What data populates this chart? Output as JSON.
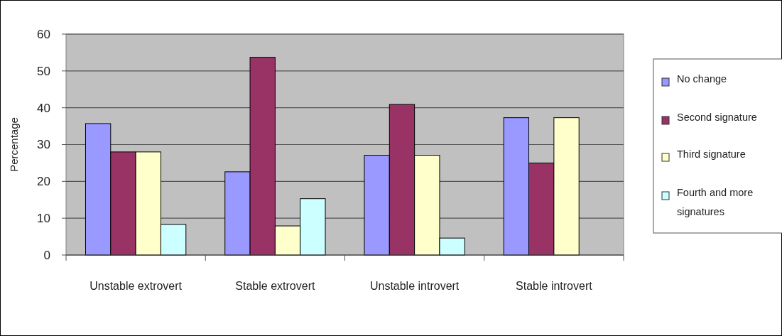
{
  "chart_data": {
    "type": "bar",
    "ylabel": "Percentage",
    "categories": [
      "Unstable extrovert",
      "Stable extrovert",
      "Unstable introvert",
      "Stable introvert"
    ],
    "series": [
      {
        "name": "No change",
        "color": "#9999ff",
        "values": [
          35.7,
          22.6,
          27.1,
          37.3
        ]
      },
      {
        "name": "Second signature",
        "color": "#993366",
        "values": [
          28,
          53.7,
          40.9,
          25
        ]
      },
      {
        "name": "Third signature",
        "color": "#ffffcc",
        "values": [
          28,
          7.9,
          27.1,
          37.3
        ]
      },
      {
        "name": "Fourth and more signatures",
        "color": "#ccffff",
        "values": [
          8.3,
          15.3,
          4.6,
          0
        ]
      }
    ],
    "ylim": [
      0,
      60
    ],
    "yticks": [
      0,
      10,
      20,
      30,
      40,
      50,
      60
    ],
    "grid": "y",
    "legend": "right"
  }
}
